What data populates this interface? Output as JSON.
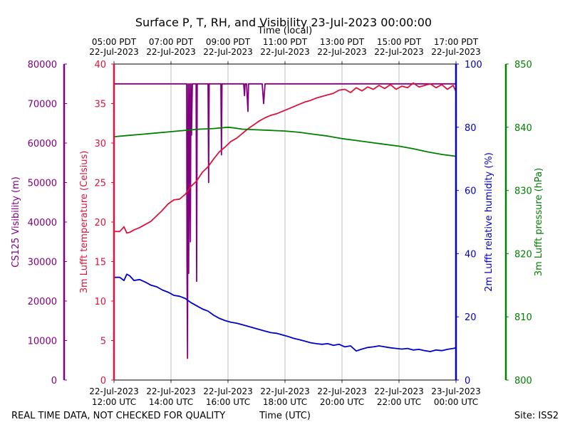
{
  "chart_data": {
    "type": "line",
    "title": "Surface P, T, RH, and Visibility 23-Jul-2023 00:00:00",
    "top_xlabel": "Time (local)",
    "xlabel": "Time (UTC)",
    "footer_left": "REAL TIME DATA, NOT CHECKED FOR QUALITY",
    "footer_right": "Site: ISS2",
    "grid": true,
    "x_range_utc_hours": [
      12,
      24
    ],
    "bottom_ticks": [
      {
        "line1": "22-Jul-2023",
        "line2": "12:00 UTC"
      },
      {
        "line1": "22-Jul-2023",
        "line2": "14:00 UTC"
      },
      {
        "line1": "22-Jul-2023",
        "line2": "16:00 UTC"
      },
      {
        "line1": "22-Jul-2023",
        "line2": "18:00 UTC"
      },
      {
        "line1": "22-Jul-2023",
        "line2": "20:00 UTC"
      },
      {
        "line1": "22-Jul-2023",
        "line2": "22:00 UTC"
      },
      {
        "line1": "23-Jul-2023",
        "line2": "00:00 UTC"
      }
    ],
    "top_ticks": [
      {
        "line1": "05:00 PDT",
        "line2": "22-Jul-2023"
      },
      {
        "line1": "07:00 PDT",
        "line2": "22-Jul-2023"
      },
      {
        "line1": "09:00 PDT",
        "line2": "22-Jul-2023"
      },
      {
        "line1": "11:00 PDT",
        "line2": "22-Jul-2023"
      },
      {
        "line1": "13:00 PDT",
        "line2": "22-Jul-2023"
      },
      {
        "line1": "15:00 PDT",
        "line2": "22-Jul-2023"
      },
      {
        "line1": "17:00 PDT",
        "line2": "22-Jul-2023"
      }
    ],
    "axes": {
      "visibility": {
        "label": "CS125 Visibility (m)",
        "ylim": [
          0,
          80000
        ],
        "ticks": [
          0,
          10000,
          20000,
          30000,
          40000,
          50000,
          60000,
          70000,
          80000
        ],
        "color": "#800080"
      },
      "temperature": {
        "label": "3m Lufft temperature (Celsius)",
        "ylim": [
          0,
          40
        ],
        "ticks": [
          0,
          5,
          10,
          15,
          20,
          25,
          30,
          35,
          40
        ],
        "color": "#DC143C"
      },
      "humidity": {
        "label": "2m Lufft relative humidity (%)",
        "ylim": [
          0,
          100
        ],
        "ticks": [
          0,
          20,
          40,
          60,
          80,
          100
        ],
        "color": "#0000CD"
      },
      "pressure": {
        "label": "3m Lufft pressure (hPa)",
        "ylim": [
          800,
          850
        ],
        "ticks": [
          800,
          810,
          820,
          830,
          840,
          850
        ],
        "color": "#008000"
      }
    },
    "series": [
      {
        "name": "CS125 Visibility (m)",
        "axis": "visibility",
        "color": "#800080",
        "x": [
          12.0,
          14.55,
          14.56,
          14.58,
          14.6,
          14.62,
          14.65,
          14.68,
          14.7,
          14.72,
          14.75,
          14.88,
          14.9,
          14.92,
          15.0,
          15.3,
          15.32,
          15.34,
          15.5,
          15.75,
          15.77,
          15.79,
          16.5,
          16.55,
          16.58,
          16.6,
          16.65,
          16.7,
          16.72,
          17.0,
          17.2,
          17.25,
          17.3,
          24.0
        ],
        "y": [
          75000,
          75000,
          30000,
          5500,
          75000,
          27000,
          75000,
          35000,
          75000,
          62000,
          75000,
          75000,
          25000,
          75000,
          75000,
          75000,
          50000,
          75000,
          75000,
          75000,
          57000,
          75000,
          75000,
          75000,
          72000,
          75000,
          75000,
          68000,
          75000,
          75000,
          75000,
          70000,
          75000,
          75000
        ]
      },
      {
        "name": "3m Lufft temperature (Celsius)",
        "axis": "temperature",
        "color": "#DC143C",
        "x": [
          12.0,
          12.2,
          12.35,
          12.45,
          12.55,
          12.7,
          12.9,
          13.1,
          13.3,
          13.5,
          13.7,
          13.9,
          14.1,
          14.3,
          14.5,
          14.7,
          14.9,
          15.1,
          15.3,
          15.5,
          15.7,
          15.9,
          16.1,
          16.3,
          16.5,
          16.7,
          16.9,
          17.1,
          17.3,
          17.5,
          17.7,
          17.9,
          18.1,
          18.3,
          18.5,
          18.7,
          18.9,
          19.1,
          19.3,
          19.5,
          19.7,
          19.9,
          20.1,
          20.3,
          20.5,
          20.7,
          20.9,
          21.1,
          21.3,
          21.5,
          21.7,
          21.9,
          22.1,
          22.3,
          22.5,
          22.7,
          22.9,
          23.1,
          23.3,
          23.5,
          23.7,
          23.9,
          24.0
        ],
        "y": [
          18.8,
          18.8,
          19.4,
          18.6,
          18.7,
          19.0,
          19.3,
          19.7,
          20.1,
          20.8,
          21.5,
          22.3,
          22.8,
          22.9,
          23.5,
          24.5,
          25.2,
          26.3,
          27.0,
          28.0,
          28.9,
          29.5,
          30.2,
          30.6,
          31.2,
          31.8,
          32.3,
          32.8,
          33.2,
          33.5,
          33.7,
          34.0,
          34.3,
          34.6,
          34.9,
          35.2,
          35.4,
          35.7,
          35.9,
          36.1,
          36.3,
          36.7,
          36.8,
          36.4,
          37.0,
          36.6,
          37.1,
          36.8,
          37.3,
          36.9,
          37.4,
          36.8,
          37.2,
          37.0,
          37.6,
          37.1,
          37.3,
          37.5,
          37.0,
          37.4,
          36.8,
          37.3,
          36.5
        ]
      },
      {
        "name": "2m Lufft relative humidity (%)",
        "axis": "humidity",
        "color": "#0000CD",
        "x": [
          12.0,
          12.2,
          12.35,
          12.45,
          12.55,
          12.7,
          12.9,
          13.1,
          13.3,
          13.5,
          13.7,
          13.9,
          14.1,
          14.3,
          14.5,
          14.7,
          14.9,
          15.1,
          15.3,
          15.5,
          15.7,
          15.9,
          16.1,
          16.3,
          16.5,
          16.7,
          16.9,
          17.1,
          17.3,
          17.5,
          17.7,
          17.9,
          18.1,
          18.3,
          18.5,
          18.7,
          18.9,
          19.1,
          19.3,
          19.5,
          19.7,
          19.9,
          20.1,
          20.3,
          20.5,
          20.7,
          20.9,
          21.1,
          21.3,
          21.5,
          21.7,
          21.9,
          22.1,
          22.3,
          22.5,
          22.7,
          22.9,
          23.1,
          23.3,
          23.5,
          23.7,
          23.9,
          24.0
        ],
        "y": [
          32.5,
          32.5,
          31.5,
          33.5,
          33.0,
          31.5,
          31.8,
          31.0,
          30.0,
          29.5,
          28.5,
          27.8,
          26.8,
          26.5,
          25.8,
          24.5,
          23.5,
          22.5,
          21.8,
          20.5,
          19.5,
          18.8,
          18.3,
          18.0,
          17.5,
          17.0,
          16.5,
          16.0,
          15.5,
          15.0,
          14.8,
          14.3,
          13.8,
          13.2,
          12.8,
          12.3,
          11.8,
          11.5,
          11.3,
          11.5,
          11.0,
          11.3,
          10.5,
          10.8,
          9.2,
          9.8,
          10.3,
          10.5,
          10.8,
          10.5,
          10.2,
          10.0,
          9.8,
          10.0,
          9.5,
          9.7,
          9.3,
          9.0,
          9.5,
          9.3,
          9.7,
          10.0,
          10.2
        ]
      },
      {
        "name": "3m Lufft pressure (hPa)",
        "axis": "pressure",
        "color": "#008000",
        "x": [
          12.0,
          12.5,
          13.0,
          13.5,
          14.0,
          14.5,
          15.0,
          15.5,
          16.0,
          16.2,
          16.5,
          17.0,
          17.5,
          18.0,
          18.5,
          19.0,
          19.5,
          20.0,
          20.5,
          21.0,
          21.5,
          22.0,
          22.5,
          23.0,
          23.5,
          24.0
        ],
        "y": [
          838.5,
          838.7,
          838.9,
          839.1,
          839.3,
          839.5,
          839.7,
          839.8,
          840.0,
          839.9,
          839.7,
          839.6,
          839.5,
          839.4,
          839.2,
          838.9,
          838.6,
          838.2,
          837.9,
          837.6,
          837.3,
          837.0,
          836.6,
          836.1,
          835.7,
          835.4
        ]
      }
    ]
  }
}
